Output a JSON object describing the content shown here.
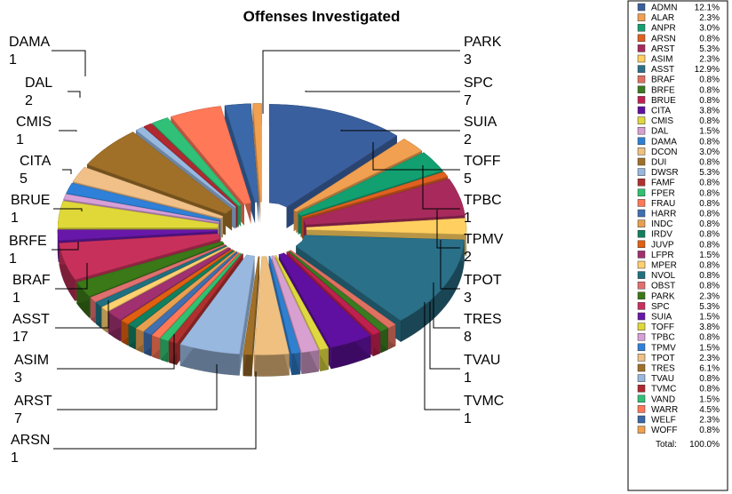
{
  "chart_data": {
    "type": "pie",
    "title": "Offenses Investigated",
    "legend_position": "right",
    "slices": [
      {
        "name": "ADMN",
        "value": 16,
        "percent": "12.1%",
        "color": "#3A5F9E"
      },
      {
        "name": "ALAR",
        "value": 3,
        "percent": "2.3%",
        "color": "#F0A050"
      },
      {
        "name": "ANPR",
        "value": 4,
        "percent": "3.0%",
        "color": "#12A070"
      },
      {
        "name": "ARSN",
        "value": 1,
        "percent": "0.8%",
        "color": "#E06020"
      },
      {
        "name": "ARST",
        "value": 7,
        "percent": "5.3%",
        "color": "#A82A5C"
      },
      {
        "name": "ASIM",
        "value": 3,
        "percent": "2.3%",
        "color": "#FFD060"
      },
      {
        "name": "ASST",
        "value": 17,
        "percent": "12.9%",
        "color": "#2A7088"
      },
      {
        "name": "BRAF",
        "value": 1,
        "percent": "0.8%",
        "color": "#E07060"
      },
      {
        "name": "BRFE",
        "value": 1,
        "percent": "0.8%",
        "color": "#3A7A20"
      },
      {
        "name": "BRUE",
        "value": 1,
        "percent": "0.8%",
        "color": "#C02050"
      },
      {
        "name": "CITA",
        "value": 5,
        "percent": "3.8%",
        "color": "#6010A0"
      },
      {
        "name": "CMIS",
        "value": 1,
        "percent": "0.8%",
        "color": "#E0D840"
      },
      {
        "name": "DAL",
        "value": 2,
        "percent": "1.5%",
        "color": "#D8A0D0"
      },
      {
        "name": "DAMA",
        "value": 1,
        "percent": "0.8%",
        "color": "#3080D0"
      },
      {
        "name": "DCON",
        "value": 4,
        "percent": "3.0%",
        "color": "#F0C080"
      },
      {
        "name": "DUI",
        "value": 1,
        "percent": "0.8%",
        "color": "#A07028"
      },
      {
        "name": "DWSR",
        "value": 7,
        "percent": "5.3%",
        "color": "#98B8E0"
      },
      {
        "name": "FAMF",
        "value": 1,
        "percent": "0.8%",
        "color": "#B03030"
      },
      {
        "name": "FPER",
        "value": 1,
        "percent": "0.8%",
        "color": "#30C070"
      },
      {
        "name": "FRAU",
        "value": 1,
        "percent": "0.8%",
        "color": "#FF7858"
      },
      {
        "name": "HARR",
        "value": 1,
        "percent": "0.8%",
        "color": "#4070B0"
      },
      {
        "name": "INDC",
        "value": 1,
        "percent": "0.8%",
        "color": "#E8A050"
      },
      {
        "name": "IRDV",
        "value": 1,
        "percent": "0.8%",
        "color": "#108060"
      },
      {
        "name": "JUVP",
        "value": 1,
        "percent": "0.8%",
        "color": "#E06010"
      },
      {
        "name": "LFPR",
        "value": 2,
        "percent": "1.5%",
        "color": "#A03070"
      },
      {
        "name": "MPER",
        "value": 1,
        "percent": "0.8%",
        "color": "#FFD070"
      },
      {
        "name": "NVOL",
        "value": 1,
        "percent": "0.8%",
        "color": "#207080"
      },
      {
        "name": "OBST",
        "value": 1,
        "percent": "0.8%",
        "color": "#E07070"
      },
      {
        "name": "PARK",
        "value": 3,
        "percent": "2.3%",
        "color": "#3A7818"
      },
      {
        "name": "SPC",
        "value": 7,
        "percent": "5.3%",
        "color": "#C8305C"
      },
      {
        "name": "SUIA",
        "value": 2,
        "percent": "1.5%",
        "color": "#6818A8"
      },
      {
        "name": "TOFF",
        "value": 5,
        "percent": "3.8%",
        "color": "#E0D838"
      },
      {
        "name": "TPBC",
        "value": 1,
        "percent": "0.8%",
        "color": "#D8A0D8"
      },
      {
        "name": "TPMV",
        "value": 2,
        "percent": "1.5%",
        "color": "#2E80D8"
      },
      {
        "name": "TPOT",
        "value": 3,
        "percent": "2.3%",
        "color": "#F0C088"
      },
      {
        "name": "TRES",
        "value": 8,
        "percent": "6.1%",
        "color": "#A07028"
      },
      {
        "name": "TVAU",
        "value": 1,
        "percent": "0.8%",
        "color": "#98B8E0"
      },
      {
        "name": "TVMC",
        "value": 1,
        "percent": "0.8%",
        "color": "#B02830"
      },
      {
        "name": "VAND",
        "value": 2,
        "percent": "1.5%",
        "color": "#30C078"
      },
      {
        "name": "WARR",
        "value": 6,
        "percent": "4.5%",
        "color": "#FF7858"
      },
      {
        "name": "WELF",
        "value": 3,
        "percent": "2.3%",
        "color": "#3A68A8"
      },
      {
        "name": "WOFF",
        "value": 1,
        "percent": "0.8%",
        "color": "#F0A050"
      }
    ],
    "callouts": [
      {
        "name": "DAMA",
        "value": "1"
      },
      {
        "name": "DAL",
        "value": "2"
      },
      {
        "name": "CMIS",
        "value": "1"
      },
      {
        "name": "CITA",
        "value": "5"
      },
      {
        "name": "BRUE",
        "value": "1"
      },
      {
        "name": "BRFE",
        "value": "1"
      },
      {
        "name": "BRAF",
        "value": "1"
      },
      {
        "name": "ASST",
        "value": "17"
      },
      {
        "name": "ASIM",
        "value": "3"
      },
      {
        "name": "ARST",
        "value": "7"
      },
      {
        "name": "ARSN",
        "value": "1"
      },
      {
        "name": "PARK",
        "value": "3"
      },
      {
        "name": "SPC",
        "value": "7"
      },
      {
        "name": "SUIA",
        "value": "2"
      },
      {
        "name": "TOFF",
        "value": "5"
      },
      {
        "name": "TPBC",
        "value": "1"
      },
      {
        "name": "TPMV",
        "value": "2"
      },
      {
        "name": "TPOT",
        "value": "3"
      },
      {
        "name": "TRES",
        "value": "8"
      },
      {
        "name": "TVAU",
        "value": "1"
      },
      {
        "name": "TVMC",
        "value": "1"
      }
    ],
    "legend_total_label": "Total:",
    "legend_total_value": "100.0%"
  }
}
